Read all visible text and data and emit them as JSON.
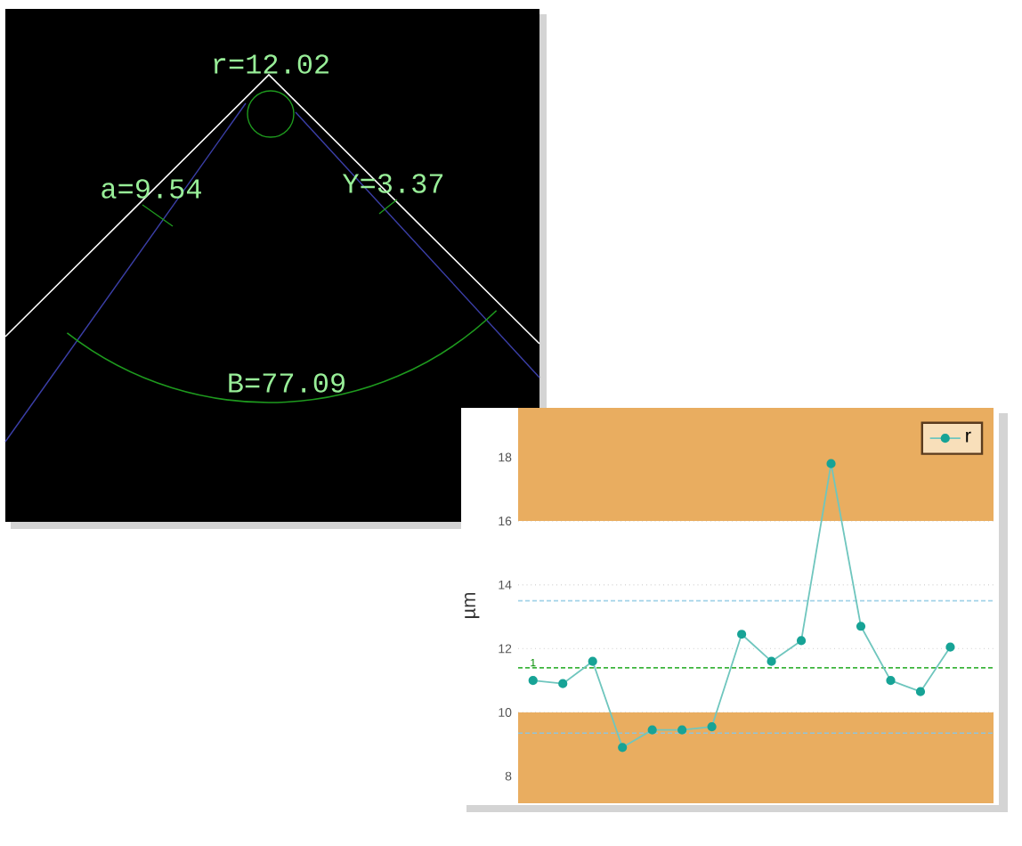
{
  "chart_data": {
    "type": "line",
    "ylabel": "µm",
    "categories": [
      null,
      null,
      null,
      null,
      null,
      null,
      null,
      null,
      null,
      null,
      null,
      null,
      null,
      null,
      null
    ],
    "series": [
      {
        "name": "r",
        "color": "#17a396",
        "values": [
          11.0,
          10.9,
          11.6,
          8.9,
          9.45,
          9.45,
          9.55,
          12.45,
          11.6,
          12.25,
          17.8,
          12.7,
          11.0,
          10.65,
          12.05
        ]
      }
    ],
    "ylim": [
      7.15,
      19.55
    ],
    "yticks": [
      8,
      10,
      12,
      14,
      16,
      18
    ],
    "tick_labels": "y",
    "grid": "y",
    "marker": "circle",
    "line_style": "solid",
    "legend": "top right",
    "bands": [
      {
        "axis": "y",
        "from": 16,
        "to": 19.55,
        "color": "#e9ad60"
      },
      {
        "axis": "y",
        "from": 7.15,
        "to": 10,
        "color": "#e9ad60"
      }
    ],
    "ref_lines": [
      {
        "axis": "y",
        "value": 13.5,
        "color": "#a3d3e8",
        "line_style": "dashed"
      },
      {
        "axis": "y",
        "value": 11.4,
        "color": "#3cb43c",
        "line_style": "dashed"
      },
      {
        "axis": "y",
        "value": 9.35,
        "color": "#8fc4dc",
        "line_style": "dashed"
      }
    ],
    "annotations": [
      "r=12.02",
      "a=9.54",
      "Y=3.37",
      "B=77.09",
      {
        "text": "1",
        "y": 11.4
      }
    ]
  }
}
